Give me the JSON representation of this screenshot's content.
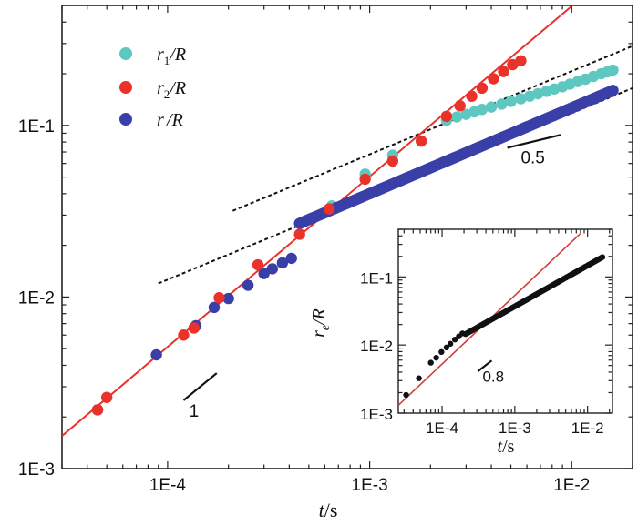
{
  "chart_data": [
    {
      "type": "scatter",
      "name": "main",
      "xscale": "log",
      "yscale": "log",
      "xlim": [
        3e-05,
        0.02
      ],
      "ylim": [
        0.001,
        0.5
      ],
      "xlabel": {
        "var": "t",
        "unit": "/s"
      },
      "ylabel": "",
      "xticks": [
        {
          "value": 0.0001,
          "label": "1E-4"
        },
        {
          "value": 0.001,
          "label": "1E-3"
        },
        {
          "value": 0.01,
          "label": "1E-2"
        }
      ],
      "yticks": [
        {
          "value": 0.001,
          "label": "1E-3"
        },
        {
          "value": 0.01,
          "label": "1E-2"
        },
        {
          "value": 0.1,
          "label": "1E-1"
        }
      ],
      "legend": {
        "placement": "top-left",
        "entries": [
          {
            "sym": "r",
            "sub": "1",
            "den": "/R",
            "color": "#5ec8c0"
          },
          {
            "sym": "r",
            "sub": "2",
            "den": "/R",
            "color": "#e8322a"
          },
          {
            "sym": "r",
            "sub": " ",
            "den": "/R",
            "color": "#3a3fa8"
          }
        ]
      },
      "series": [
        {
          "name": "r1/R",
          "color": "#5ec8c0",
          "x": [
            0.00065,
            0.00095,
            0.0013,
            0.0024,
            0.0027,
            0.003,
            0.0033,
            0.0036,
            0.004,
            0.0045,
            0.005,
            0.0056,
            0.0062,
            0.0068,
            0.0075,
            0.0082,
            0.009,
            0.0098,
            0.0107,
            0.0117,
            0.0128,
            0.014,
            0.015,
            0.016
          ],
          "y": [
            0.034,
            0.052,
            0.067,
            0.107,
            0.112,
            0.116,
            0.12,
            0.124,
            0.128,
            0.133,
            0.138,
            0.143,
            0.148,
            0.153,
            0.158,
            0.163,
            0.168,
            0.174,
            0.18,
            0.186,
            0.193,
            0.2,
            0.205,
            0.21
          ]
        },
        {
          "name": "r2/R",
          "color": "#e8322a",
          "x": [
            4.5e-05,
            5e-05,
            0.00012,
            0.000135,
            0.00018,
            0.00028,
            0.00045,
            0.00063,
            0.00095,
            0.0013,
            0.0018,
            0.0024,
            0.0028,
            0.0032,
            0.0036,
            0.0041,
            0.0046,
            0.0051,
            0.0056
          ],
          "y": [
            0.0022,
            0.0026,
            0.006,
            0.0066,
            0.0099,
            0.0154,
            0.0232,
            0.0326,
            0.0486,
            0.062,
            0.081,
            0.113,
            0.13,
            0.148,
            0.165,
            0.187,
            0.206,
            0.226,
            0.238
          ]
        },
        {
          "name": "r/R",
          "color": "#3a3fa8",
          "x": [
            4.5e-05,
            8.8e-05,
            0.000138,
            0.00017,
            0.0002,
            0.00025,
            0.0003,
            0.00033,
            0.00037,
            0.00041
          ],
          "y": [
            0.0022,
            0.0046,
            0.0068,
            0.0087,
            0.0098,
            0.0117,
            0.0137,
            0.0146,
            0.0158,
            0.0168
          ],
          "dense_curve": {
            "x0": 0.00045,
            "x1": 0.016,
            "exponent": 0.5,
            "y_end": 0.16,
            "count": 170
          }
        }
      ],
      "fit_line": {
        "color": "#e8322a",
        "slope": 1,
        "x": [
          3e-05,
          0.0105
        ],
        "y": [
          0.00155,
          0.52
        ]
      },
      "guide_lines": [
        {
          "slope": 0.5,
          "x": [
            9e-05,
            0.02
          ],
          "y": [
            0.012,
            0.165
          ]
        },
        {
          "slope": 0.5,
          "x": [
            0.00021,
            0.02
          ],
          "y": [
            0.0318,
            0.29
          ]
        }
      ],
      "slope_markers": [
        {
          "label": "1",
          "x": [
            0.00012,
            0.000175
          ],
          "y": [
            0.0025,
            0.0036
          ]
        },
        {
          "label": "0.5",
          "x": [
            0.0048,
            0.0088
          ],
          "y": [
            0.074,
            0.088
          ]
        }
      ]
    },
    {
      "type": "scatter",
      "name": "inset",
      "xscale": "log",
      "yscale": "log",
      "xlim": [
        2.5e-05,
        0.022
      ],
      "ylim": [
        0.001,
        0.5
      ],
      "xlabel": {
        "var": "t",
        "unit": "/s"
      },
      "ylabel": {
        "var": "r",
        "sub": "e",
        "den": "/R"
      },
      "xticks": [
        {
          "value": 0.0001,
          "label": "1E-4"
        },
        {
          "value": 0.001,
          "label": "1E-3"
        },
        {
          "value": 0.01,
          "label": "1E-2"
        }
      ],
      "yticks": [
        {
          "value": 0.001,
          "label": "1E-3"
        },
        {
          "value": 0.01,
          "label": "1E-2"
        },
        {
          "value": 0.1,
          "label": "1E-1"
        }
      ],
      "series": [
        {
          "name": "re/R",
          "color": "#111111",
          "x": [
            3.2e-05,
            4.8e-05,
            7e-05,
            8.3e-05,
            9.8e-05,
            0.000115,
            0.00013,
            0.00015,
            0.00017,
            0.00019
          ],
          "y": [
            0.00185,
            0.00325,
            0.0055,
            0.0065,
            0.0079,
            0.0092,
            0.0104,
            0.012,
            0.0134,
            0.0148
          ],
          "dense_curve": {
            "x0": 0.00021,
            "x1": 0.016,
            "exponent": 0.6,
            "y_end": 0.195,
            "count": 120
          }
        }
      ],
      "fit_line": {
        "color": "#d23c3c",
        "slope": 1,
        "x": [
          2.5e-05,
          0.0079
        ],
        "y": [
          0.0013,
          0.43
        ]
      },
      "slope_markers": [
        {
          "label": "0.8",
          "x": [
            0.00031,
            0.00048
          ],
          "y": [
            0.0041,
            0.0059
          ]
        }
      ]
    }
  ]
}
